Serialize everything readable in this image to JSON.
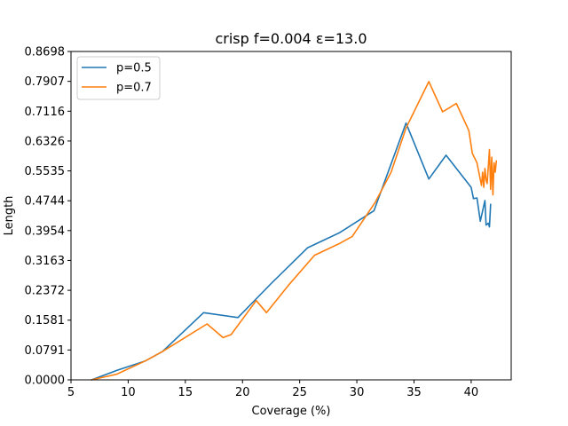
{
  "chart_data": {
    "type": "line",
    "title": "crisp f=0.004 ε=13.0",
    "xlabel": "Coverage (%)",
    "ylabel": "Length",
    "xlim": [
      5,
      43.5
    ],
    "ylim": [
      0,
      0.8698
    ],
    "xticks": [
      5,
      10,
      15,
      20,
      25,
      30,
      35,
      40
    ],
    "yticks": [
      0.0,
      0.0791,
      0.1581,
      0.2372,
      0.3163,
      0.3954,
      0.4744,
      0.5535,
      0.6326,
      0.7116,
      0.7907,
      0.8698
    ],
    "ytick_labels": [
      "0.0000",
      "0.0791",
      "0.1581",
      "0.2372",
      "0.3163",
      "0.3954",
      "0.4744",
      "0.5535",
      "0.6326",
      "0.7116",
      "0.7907",
      "0.8698"
    ],
    "legend_position": "top-left",
    "grid": false,
    "series": [
      {
        "name": "p=0.5",
        "color": "#1f77b4",
        "points": [
          [
            6.8,
            0.0
          ],
          [
            9.0,
            0.025
          ],
          [
            11.5,
            0.05
          ],
          [
            13.0,
            0.075
          ],
          [
            16.6,
            0.178
          ],
          [
            19.6,
            0.165
          ],
          [
            22.5,
            0.255
          ],
          [
            25.7,
            0.35
          ],
          [
            28.5,
            0.39
          ],
          [
            31.5,
            0.448
          ],
          [
            34.3,
            0.68
          ],
          [
            36.3,
            0.532
          ],
          [
            37.8,
            0.595
          ],
          [
            40.0,
            0.51
          ],
          [
            40.2,
            0.48
          ],
          [
            40.5,
            0.482
          ],
          [
            40.8,
            0.42
          ],
          [
            41.2,
            0.475
          ],
          [
            41.3,
            0.41
          ],
          [
            41.5,
            0.415
          ],
          [
            41.6,
            0.405
          ],
          [
            41.7,
            0.465
          ]
        ]
      },
      {
        "name": "p=0.7",
        "color": "#ff7f0e",
        "points": [
          [
            6.8,
            0.0
          ],
          [
            9.0,
            0.015
          ],
          [
            11.5,
            0.05
          ],
          [
            13.0,
            0.075
          ],
          [
            16.9,
            0.148
          ],
          [
            18.3,
            0.112
          ],
          [
            19.0,
            0.12
          ],
          [
            21.2,
            0.21
          ],
          [
            22.1,
            0.178
          ],
          [
            24.0,
            0.25
          ],
          [
            26.3,
            0.33
          ],
          [
            28.4,
            0.36
          ],
          [
            29.6,
            0.38
          ],
          [
            31.6,
            0.47
          ],
          [
            33.0,
            0.55
          ],
          [
            34.3,
            0.667
          ],
          [
            36.3,
            0.79
          ],
          [
            37.5,
            0.71
          ],
          [
            38.7,
            0.732
          ],
          [
            39.8,
            0.66
          ],
          [
            40.1,
            0.6
          ],
          [
            40.5,
            0.575
          ],
          [
            40.9,
            0.515
          ],
          [
            41.0,
            0.55
          ],
          [
            41.1,
            0.51
          ],
          [
            41.2,
            0.56
          ],
          [
            41.3,
            0.53
          ],
          [
            41.4,
            0.52
          ],
          [
            41.6,
            0.61
          ],
          [
            41.7,
            0.505
          ],
          [
            41.8,
            0.59
          ],
          [
            41.9,
            0.49
          ],
          [
            42.0,
            0.575
          ],
          [
            42.1,
            0.55
          ],
          [
            42.2,
            0.58
          ]
        ]
      }
    ]
  }
}
